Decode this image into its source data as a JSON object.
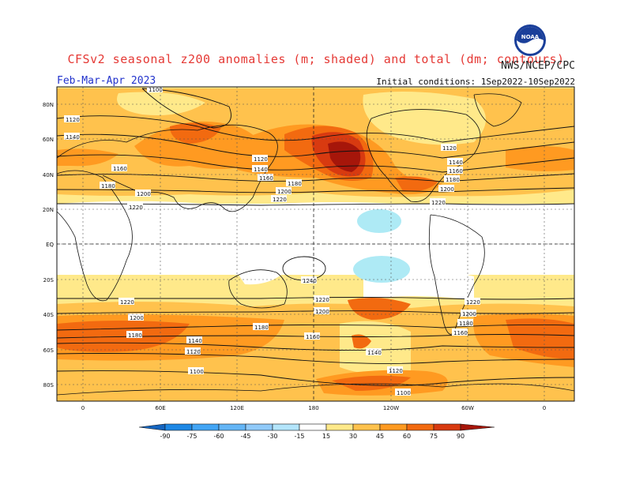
{
  "header": {
    "title": "CFSv2 seasonal z200 anomalies (m; shaded) and total (dm; contours)",
    "agency": "NWS/NCEP/CPC",
    "period": "Feb-Mar-Apr 2023",
    "initial_conditions": "Initial conditions: 1Sep2022-10Sep2022",
    "logo_text": "NOAA",
    "logo_icon": "noaa-logo-icon"
  },
  "map": {
    "lat_ticks": [
      "80N",
      "60N",
      "40N",
      "20N",
      "EQ",
      "20S",
      "40S",
      "60S",
      "80S"
    ],
    "lon_ticks": [
      "0",
      "60E",
      "120E",
      "180",
      "120W",
      "60W",
      "0"
    ],
    "contour_labels": [
      "1100",
      "1120",
      "1140",
      "1160",
      "1180",
      "1200",
      "1220",
      "1240"
    ],
    "colors": {
      "pos15": "#ffe98a",
      "pos30": "#ffc24d",
      "pos45": "#ff9a21",
      "pos60": "#f26a10",
      "pos75": "#d83a10",
      "pos90": "#a6160a",
      "neg15": "#aeeaf5",
      "grid": "#555555"
    }
  },
  "legend": {
    "tick_labels": [
      "-90",
      "-75",
      "-60",
      "-45",
      "-30",
      "-15",
      "15",
      "30",
      "45",
      "60",
      "75",
      "90"
    ],
    "colors": [
      "#1565c0",
      "#1e88e5",
      "#42a5f5",
      "#64b5f6",
      "#90caf9",
      "#b3e5fc",
      "#ffffff",
      "#ffe98a",
      "#ffc24d",
      "#ff9a21",
      "#f26a10",
      "#d83a10",
      "#a6160a"
    ]
  }
}
